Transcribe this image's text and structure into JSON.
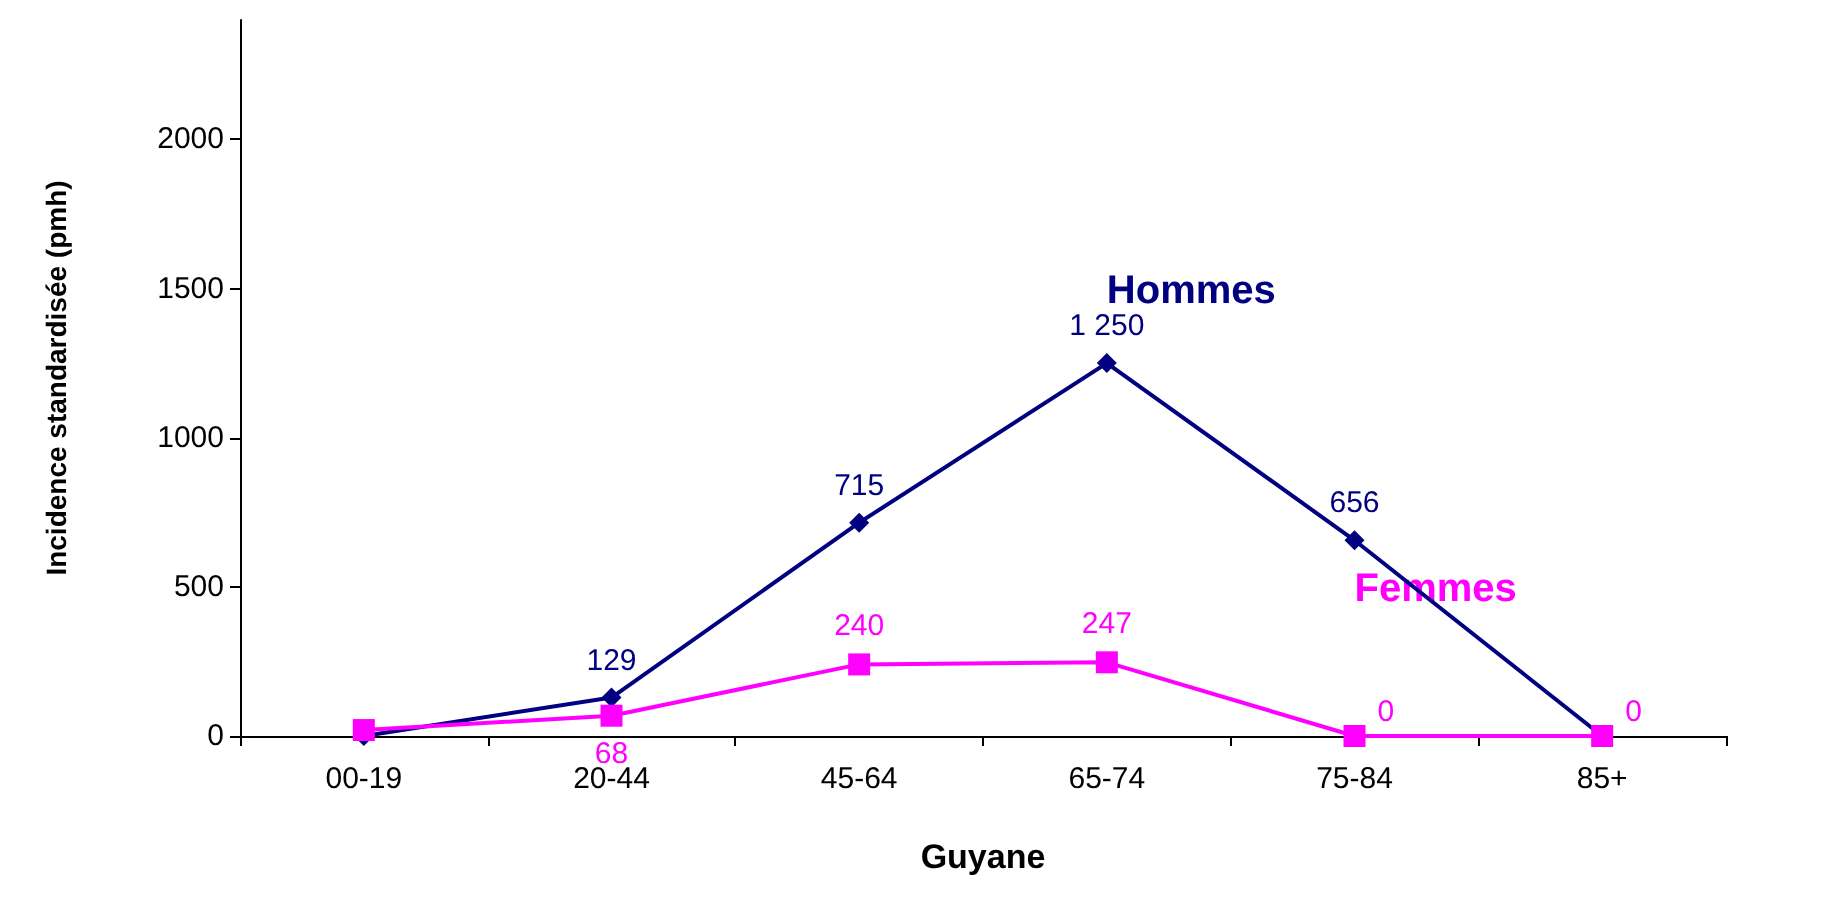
{
  "chart_data": {
    "type": "line",
    "xlabel": "Guyane",
    "ylabel": "Incidence standardisée (pmh)",
    "categories": [
      "00-19",
      "20-44",
      "45-64",
      "65-74",
      "75-84",
      "85+"
    ],
    "series": [
      {
        "name": "Hommes",
        "color": "#000080",
        "marker": "diamond",
        "values": [
          0,
          129,
          715,
          1250,
          656,
          0
        ],
        "value_labels": [
          null,
          "129",
          "715",
          "1 250",
          "656",
          null
        ]
      },
      {
        "name": "Femmes",
        "color": "#ff00ff",
        "marker": "square",
        "values": [
          20,
          68,
          240,
          247,
          0,
          0
        ],
        "value_labels": [
          null,
          "68",
          "240",
          "247",
          "0",
          "0"
        ]
      }
    ],
    "ylim": [
      0,
      2400
    ],
    "yticks": [
      0,
      500,
      1000,
      1500,
      2000
    ],
    "grid": false,
    "legend": false,
    "line_style": "solid"
  }
}
